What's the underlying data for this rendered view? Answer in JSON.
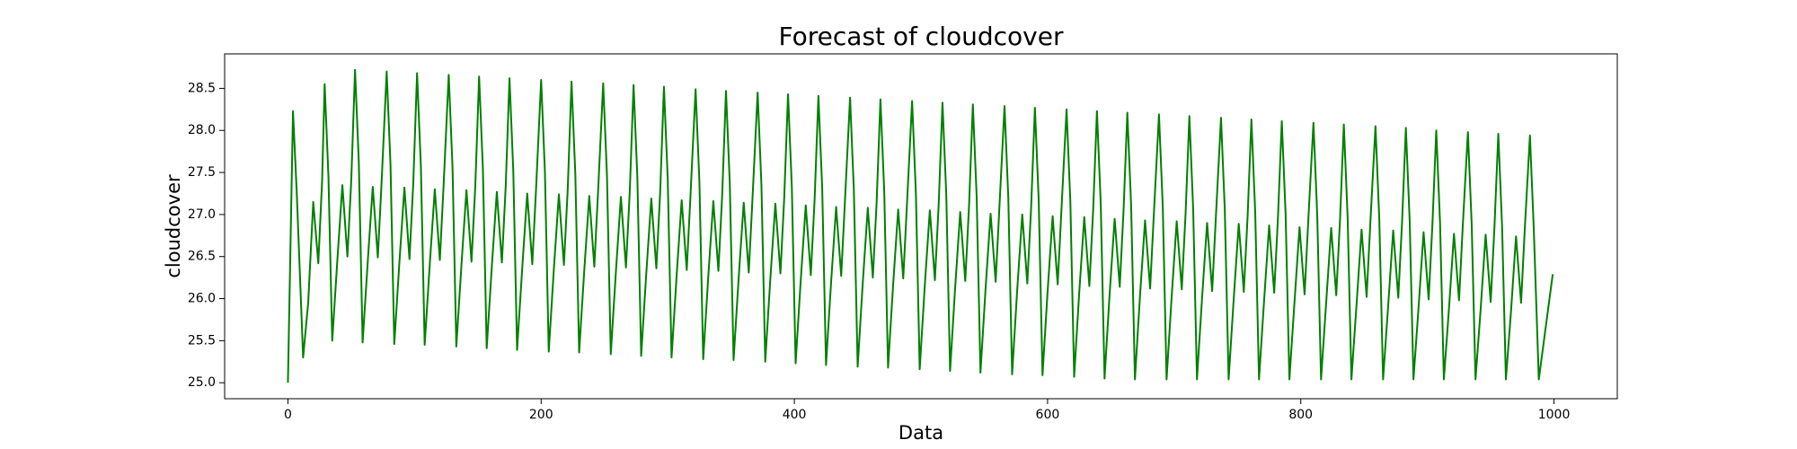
{
  "chart_data": {
    "type": "line",
    "title": "Forecast of cloudcover",
    "xlabel": "Data",
    "ylabel": "cloudcover",
    "color": "#008000",
    "grid": false,
    "xlim": [
      -50,
      1050
    ],
    "ylim": [
      24.81,
      28.91
    ],
    "xticks": [
      0,
      200,
      400,
      600,
      800,
      1000
    ],
    "yticks": [
      {
        "value": 25,
        "label": "25.0"
      },
      25.5,
      {
        "value": 26,
        "label": "26.0"
      },
      26.5,
      {
        "value": 27,
        "label": "27.0"
      },
      27.5,
      {
        "value": 28,
        "label": "28.0"
      },
      28.5
    ],
    "x": [
      0,
      4,
      7,
      12,
      16,
      20,
      24,
      27,
      29,
      32,
      35,
      39,
      43,
      47,
      50,
      53,
      56,
      59,
      63,
      67,
      71,
      74,
      78,
      81,
      84,
      88,
      92,
      96,
      99,
      102,
      105,
      108,
      112,
      116,
      120,
      123,
      127,
      130,
      133,
      137,
      141,
      145,
      148,
      151,
      154,
      157,
      161,
      165,
      169,
      172,
      175,
      178,
      181,
      185,
      189,
      193,
      196,
      200,
      203,
      206,
      210,
      214,
      218,
      221,
      224,
      227,
      230,
      234,
      238,
      242,
      245,
      249,
      252,
      255,
      259,
      263,
      267,
      270,
      273,
      276,
      279,
      283,
      287,
      291,
      294,
      297,
      300,
      303,
      307,
      311,
      315,
      318,
      322,
      325,
      328,
      332,
      336,
      340,
      343,
      346,
      349,
      352,
      356,
      360,
      364,
      367,
      371,
      374,
      377,
      381,
      385,
      389,
      392,
      395,
      398,
      401,
      405,
      409,
      413,
      416,
      419,
      422,
      425,
      429,
      433,
      437,
      440,
      444,
      447,
      450,
      454,
      458,
      462,
      465,
      468,
      471,
      474,
      478,
      482,
      486,
      489,
      493,
      496,
      499,
      503,
      507,
      511,
      514,
      517,
      520,
      523,
      527,
      531,
      535,
      538,
      541,
      544,
      547,
      551,
      555,
      559,
      562,
      566,
      569,
      572,
      576,
      580,
      584,
      587,
      590,
      593,
      596,
      600,
      604,
      608,
      611,
      615,
      618,
      621,
      625,
      629,
      633,
      636,
      639,
      642,
      645,
      649,
      653,
      657,
      660,
      663,
      666,
      669,
      673,
      677,
      681,
      684,
      688,
      691,
      694,
      698,
      702,
      706,
      709,
      712,
      715,
      718,
      722,
      726,
      730,
      733,
      737,
      740,
      743,
      747,
      751,
      755,
      758,
      761,
      764,
      767,
      771,
      775,
      779,
      782,
      785,
      788,
      791,
      795,
      799,
      803,
      806,
      810,
      813,
      816,
      820,
      824,
      828,
      831,
      834,
      837,
      840,
      844,
      848,
      852,
      855,
      859,
      862,
      865,
      869,
      873,
      877,
      880,
      883,
      886,
      889,
      893,
      897,
      901,
      904,
      907,
      910,
      913,
      917,
      921,
      925,
      928,
      932,
      935,
      938,
      942,
      946,
      950,
      953,
      956,
      959,
      962,
      966,
      970,
      974,
      977,
      981,
      984,
      988,
      999
    ],
    "values": [
      25.0,
      28.23,
      27.25,
      25.3,
      25.95,
      27.15,
      26.42,
      27.4,
      28.55,
      27.45,
      25.5,
      26.45,
      27.35,
      26.5,
      27.4,
      28.72,
      27.62,
      25.48,
      26.43,
      27.33,
      26.49,
      27.39,
      28.7,
      27.6,
      25.46,
      26.42,
      27.32,
      26.47,
      27.37,
      28.68,
      27.58,
      25.45,
      26.4,
      27.3,
      26.46,
      27.36,
      28.66,
      27.56,
      25.43,
      26.39,
      27.29,
      26.44,
      27.34,
      28.64,
      27.54,
      25.41,
      26.37,
      27.27,
      26.43,
      27.33,
      28.62,
      27.52,
      25.39,
      26.35,
      27.25,
      26.41,
      27.31,
      28.6,
      27.5,
      25.37,
      26.34,
      27.24,
      26.4,
      27.3,
      28.58,
      27.48,
      25.36,
      26.32,
      27.22,
      26.38,
      27.28,
      28.56,
      27.46,
      25.34,
      26.31,
      27.21,
      26.37,
      27.27,
      28.54,
      27.44,
      25.32,
      26.29,
      27.19,
      26.36,
      27.26,
      28.52,
      27.42,
      25.3,
      26.27,
      27.17,
      26.34,
      27.24,
      28.49,
      27.39,
      25.28,
      26.26,
      27.16,
      26.33,
      27.23,
      28.47,
      27.37,
      25.27,
      26.24,
      27.14,
      26.31,
      27.21,
      28.45,
      27.35,
      25.25,
      26.23,
      27.13,
      26.3,
      27.2,
      28.43,
      27.33,
      25.23,
      26.21,
      27.11,
      26.28,
      27.18,
      28.41,
      27.31,
      25.21,
      26.19,
      27.09,
      26.27,
      27.17,
      28.39,
      27.29,
      25.19,
      26.18,
      27.08,
      26.25,
      27.15,
      28.37,
      27.27,
      25.18,
      26.16,
      27.06,
      26.24,
      27.14,
      28.35,
      27.25,
      25.16,
      26.15,
      27.05,
      26.22,
      27.12,
      28.33,
      27.23,
      25.14,
      26.13,
      27.03,
      26.21,
      27.11,
      28.31,
      27.21,
      25.12,
      26.11,
      27.01,
      26.2,
      27.1,
      28.29,
      27.19,
      25.1,
      26.1,
      27.0,
      26.18,
      27.08,
      28.27,
      27.17,
      25.09,
      26.08,
      26.98,
      26.17,
      27.07,
      28.25,
      27.15,
      25.07,
      26.07,
      26.97,
      26.15,
      27.05,
      28.23,
      27.13,
      25.05,
      26.05,
      26.95,
      26.14,
      27.04,
      28.21,
      27.11,
      25.04,
      26.03,
      26.93,
      26.12,
      27.02,
      28.19,
      27.09,
      25.04,
      26.02,
      26.92,
      26.11,
      27.01,
      28.17,
      27.07,
      25.04,
      26.0,
      26.9,
      26.09,
      26.99,
      28.15,
      27.05,
      25.04,
      25.99,
      26.89,
      26.08,
      26.98,
      28.13,
      27.03,
      25.04,
      25.97,
      26.87,
      26.07,
      26.97,
      28.11,
      27.01,
      25.04,
      25.95,
      26.85,
      26.05,
      26.95,
      28.09,
      26.99,
      25.04,
      25.94,
      26.84,
      26.04,
      26.94,
      28.07,
      26.97,
      25.04,
      25.92,
      26.82,
      26.02,
      26.92,
      28.05,
      26.95,
      25.04,
      25.91,
      26.81,
      26.01,
      26.91,
      28.03,
      26.93,
      25.04,
      25.89,
      26.79,
      25.99,
      26.89,
      28.0,
      26.9,
      25.04,
      25.87,
      26.77,
      25.98,
      26.88,
      27.98,
      26.88,
      25.04,
      25.86,
      26.76,
      25.96,
      26.86,
      27.96,
      26.86,
      25.04,
      25.84,
      26.74,
      25.95,
      26.85,
      27.94,
      26.84,
      25.04,
      26.29
    ]
  }
}
